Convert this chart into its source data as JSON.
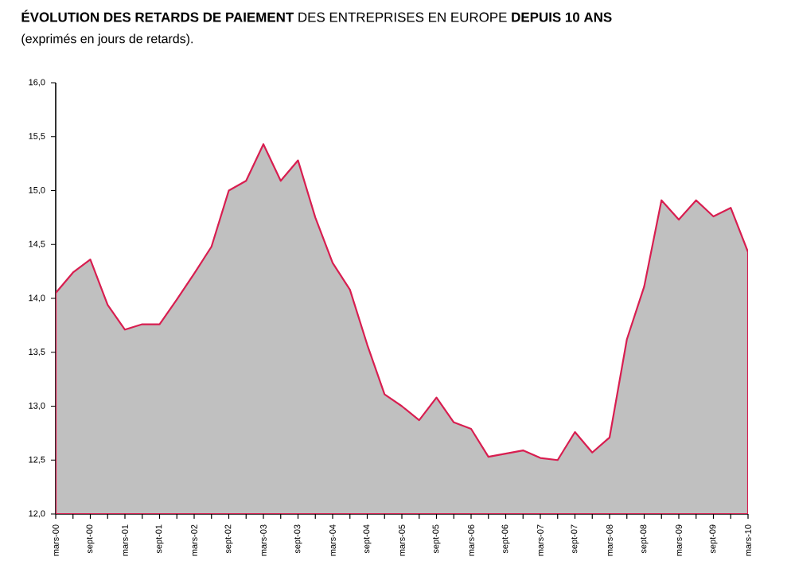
{
  "chart_data": {
    "type": "area",
    "title": "**ÉVOLUTION DES RETARDS DE PAIEMENT** DES ENTREPRISES EN EUROPE **DEPUIS 10 ANS**",
    "subtitle": "(exprimés en jours de retards).",
    "categories": [
      "mars-00",
      null,
      "sept-00",
      null,
      "mars-01",
      null,
      "sept-01",
      null,
      "mars-02",
      null,
      "sept-02",
      null,
      "mars-03",
      null,
      "sept-03",
      null,
      "mars-04",
      null,
      "sept-04",
      null,
      "mars-05",
      null,
      "sept-05",
      null,
      "mars-06",
      null,
      "sept-06",
      null,
      "mars-07",
      null,
      "sept-07",
      null,
      "mars-08",
      null,
      "sept-08",
      null,
      "mars-09",
      null,
      "sept-09",
      null,
      "mars-10"
    ],
    "series": [
      {
        "color": "#d81e50",
        "values": [
          14.05,
          14.24,
          14.36,
          13.94,
          13.71,
          13.76,
          13.76,
          13.99,
          14.23,
          14.48,
          15.0,
          15.09,
          15.43,
          15.09,
          15.28,
          14.75,
          14.33,
          14.08,
          13.57,
          13.11,
          13.0,
          12.87,
          13.08,
          12.85,
          12.79,
          12.53,
          12.56,
          12.59,
          12.52,
          12.5,
          12.76,
          12.57,
          12.71,
          13.62,
          14.11,
          14.91,
          14.73,
          14.91,
          14.76,
          14.84,
          14.43
        ]
      }
    ],
    "ylim": [
      12,
      16
    ],
    "yticks": [
      {
        "value": 12,
        "label": "12,0"
      },
      {
        "value": 12.5,
        "label": "12,5"
      },
      {
        "value": 13,
        "label": "13,0"
      },
      {
        "value": 13.5,
        "label": "13,5"
      },
      {
        "value": 14,
        "label": "14,0"
      },
      {
        "value": 14.5,
        "label": "14,5"
      },
      {
        "value": 15,
        "label": "15,0"
      },
      {
        "value": 15.5,
        "label": "15,5"
      },
      {
        "value": 16,
        "label": "16,0"
      }
    ]
  }
}
